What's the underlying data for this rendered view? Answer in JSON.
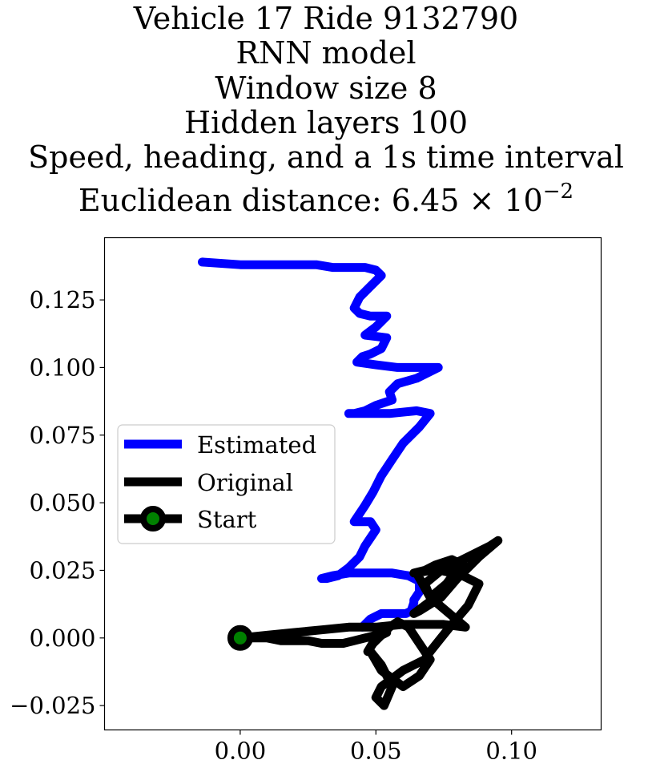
{
  "title_lines": [
    "Vehicle 17 Ride 9132790",
    "RNN model",
    "Window size 8",
    "Hidden layers 100",
    "Speed, heading, and a 1s time interval",
    "Euclidean distance: 6.45 × 10",
    "−2"
  ],
  "chart_data": {
    "type": "line",
    "title": "Vehicle 17 Ride 9132790 / RNN model / Window size 8 / Hidden layers 100 / Speed, heading, and a 1s time interval / Euclidean distance: 6.45×10^-2",
    "xlabel": "",
    "ylabel": "",
    "xlim": [
      -0.05,
      0.133
    ],
    "ylim": [
      -0.034,
      0.148
    ],
    "grid": false,
    "legend_position": "center-left",
    "x_ticks": [
      "0.00",
      "0.05",
      "0.10"
    ],
    "x_tick_values": [
      0.0,
      0.05,
      0.1
    ],
    "y_ticks": [
      "−0.025",
      "0.000",
      "0.025",
      "0.050",
      "0.075",
      "0.100",
      "0.125"
    ],
    "y_tick_values": [
      -0.025,
      0.0,
      0.025,
      0.05,
      0.075,
      0.1,
      0.125
    ],
    "series": [
      {
        "name": "Estimated",
        "color": "#0000ff",
        "x": [
          -0.014,
          0.0,
          0.01,
          0.02,
          0.028,
          0.034,
          0.038,
          0.042,
          0.046,
          0.05,
          0.052,
          0.048,
          0.044,
          0.042,
          0.044,
          0.048,
          0.054,
          0.05,
          0.046,
          0.054,
          0.052,
          0.048,
          0.045,
          0.043,
          0.05,
          0.058,
          0.066,
          0.073,
          0.065,
          0.058,
          0.055,
          0.056,
          0.05,
          0.046,
          0.042,
          0.04,
          0.045,
          0.055,
          0.065,
          0.07,
          0.066,
          0.06,
          0.056,
          0.052,
          0.049,
          0.046,
          0.044,
          0.042,
          0.045,
          0.048,
          0.05,
          0.048,
          0.046,
          0.044,
          0.04,
          0.036,
          0.032,
          0.03,
          0.034,
          0.04,
          0.048,
          0.056,
          0.062,
          0.066,
          0.066,
          0.064,
          0.064,
          0.063,
          0.061,
          0.058,
          0.055,
          0.052,
          0.05,
          0.048,
          0.046,
          0.045
        ],
        "y": [
          0.139,
          0.138,
          0.138,
          0.138,
          0.138,
          0.137,
          0.137,
          0.137,
          0.137,
          0.136,
          0.134,
          0.13,
          0.126,
          0.122,
          0.12,
          0.119,
          0.119,
          0.115,
          0.112,
          0.111,
          0.107,
          0.105,
          0.104,
          0.102,
          0.101,
          0.1,
          0.1,
          0.1,
          0.096,
          0.094,
          0.091,
          0.088,
          0.086,
          0.084,
          0.083,
          0.083,
          0.083,
          0.083,
          0.084,
          0.083,
          0.078,
          0.072,
          0.066,
          0.06,
          0.054,
          0.049,
          0.046,
          0.043,
          0.043,
          0.043,
          0.04,
          0.037,
          0.034,
          0.03,
          0.026,
          0.023,
          0.022,
          0.022,
          0.023,
          0.024,
          0.024,
          0.024,
          0.023,
          0.021,
          0.017,
          0.014,
          0.013,
          0.01,
          0.009,
          0.009,
          0.009,
          0.009,
          0.008,
          0.007,
          0.005,
          0.004
        ]
      },
      {
        "name": "Original",
        "color": "#000000",
        "x": [
          0.0,
          0.01,
          0.02,
          0.03,
          0.04,
          0.05,
          0.06,
          0.075,
          0.083,
          0.07,
          0.065,
          0.07,
          0.075,
          0.08,
          0.078,
          0.072,
          0.068,
          0.064,
          0.07,
          0.078,
          0.086,
          0.092,
          0.095,
          0.088,
          0.08,
          0.074,
          0.066,
          0.064,
          0.072,
          0.08,
          0.082,
          0.076,
          0.07,
          0.068,
          0.074,
          0.082,
          0.088,
          0.084,
          0.078,
          0.074,
          0.07,
          0.068,
          0.064,
          0.06,
          0.056,
          0.052,
          0.05,
          0.053,
          0.056,
          0.052,
          0.048,
          0.052,
          0.06,
          0.066,
          0.07,
          0.066,
          0.062,
          0.058,
          0.055,
          0.052,
          0.049,
          0.047,
          0.05,
          0.054,
          0.05,
          0.046,
          0.042,
          0.038,
          0.034,
          0.03,
          0.025,
          0.02,
          0.015,
          0.01,
          0.005,
          0.0
        ],
        "y": [
          0.0,
          0.001,
          0.002,
          0.003,
          0.004,
          0.004,
          0.005,
          0.005,
          0.004,
          0.015,
          0.024,
          0.025,
          0.026,
          0.028,
          0.029,
          0.027,
          0.025,
          0.024,
          0.025,
          0.027,
          0.031,
          0.034,
          0.036,
          0.03,
          0.022,
          0.015,
          0.01,
          0.009,
          0.015,
          0.022,
          0.028,
          0.02,
          0.015,
          0.02,
          0.025,
          0.023,
          0.02,
          0.012,
          0.005,
          0.0,
          -0.005,
          -0.008,
          -0.01,
          -0.012,
          -0.015,
          -0.018,
          -0.022,
          -0.025,
          -0.018,
          -0.01,
          -0.005,
          -0.012,
          -0.018,
          -0.014,
          -0.008,
          -0.002,
          0.004,
          0.006,
          0.004,
          0.001,
          -0.002,
          -0.005,
          0.0,
          0.002,
          0.001,
          0.0,
          -0.001,
          -0.002,
          -0.002,
          -0.002,
          -0.001,
          -0.001,
          -0.001,
          0.0,
          0.0,
          0.0
        ]
      },
      {
        "name": "Start",
        "color": "#000000",
        "marker_face_color": "#008000",
        "x": [
          0.0
        ],
        "y": [
          0.0
        ]
      }
    ]
  }
}
